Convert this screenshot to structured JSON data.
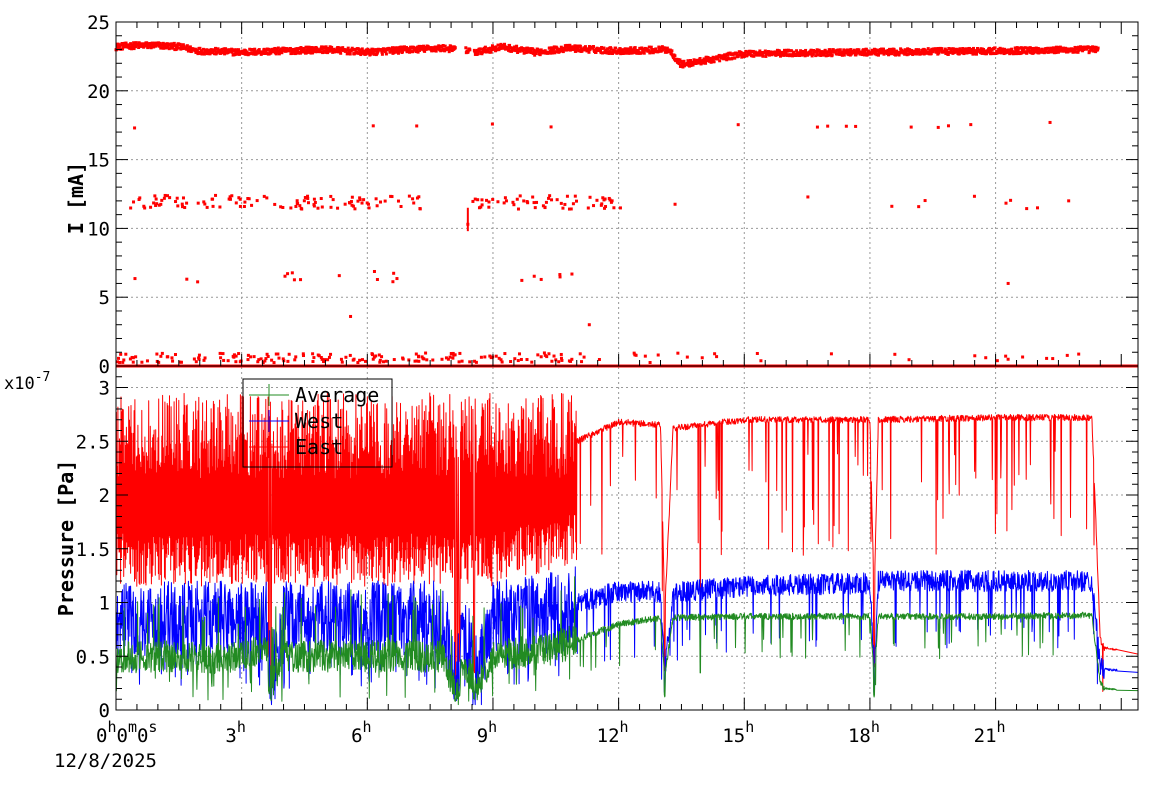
{
  "chart_data": [
    {
      "type": "scatter",
      "ylabel": "I [mA]",
      "ylim": [
        0,
        25
      ],
      "yticks": [
        0,
        5,
        10,
        15,
        20,
        25
      ],
      "grid": true,
      "series": [
        {
          "color": "#ff0000",
          "marker": "square",
          "main_band": {
            "x_hours": [
              0,
              0.5,
              1,
              1.5,
              2,
              3,
              4,
              5,
              6,
              7,
              7.8,
              8.2,
              8.6,
              9.2,
              10,
              10.8,
              12,
              13.2,
              13.5,
              15,
              18,
              21,
              23.4
            ],
            "y": [
              23.2,
              23.3,
              23.3,
              23.2,
              22.9,
              22.8,
              22.9,
              23.0,
              22.8,
              23.0,
              23.1,
              23.0,
              22.8,
              23.2,
              22.8,
              23.1,
              22.9,
              23.0,
              21.9,
              22.7,
              22.8,
              22.9,
              23.0
            ]
          },
          "base_line_y": 0.0,
          "scattered_levels_mA": [
            11.9,
            17.5,
            6.5,
            0.6
          ],
          "extra_points": [
            [
              11.3,
              3.0
            ],
            [
              5.6,
              3.6
            ],
            [
              8.4,
              10.3
            ],
            [
              21.3,
              6.0
            ],
            [
              22.3,
              17.7
            ]
          ]
        }
      ]
    },
    {
      "type": "line",
      "ylabel": "Pressure [Pa]",
      "y_exponent_base": "x10",
      "y_exponent": "-7",
      "ylim": [
        0,
        3.2
      ],
      "yticks": [
        "0",
        "0.5",
        "1",
        "1.5",
        "2",
        "2.5",
        "3"
      ],
      "ytick_values": [
        0,
        0.5,
        1,
        1.5,
        2,
        2.5,
        3
      ],
      "grid": true,
      "legend_position": "top-left",
      "series": [
        {
          "name": "Average",
          "color": "#228b22",
          "x_hours": [
            0,
            1,
            2,
            3,
            3.6,
            3.7,
            4,
            6,
            7.8,
            8.1,
            8.3,
            8.6,
            9,
            10,
            11,
            12,
            13.0,
            13.1,
            13.3,
            15,
            18,
            18.1,
            18.2,
            21,
            23.3,
            23.5,
            23.6,
            24.4
          ],
          "y": [
            0.48,
            0.5,
            0.48,
            0.5,
            0.6,
            0.22,
            0.5,
            0.5,
            0.5,
            0.2,
            0.45,
            0.22,
            0.5,
            0.55,
            0.65,
            0.8,
            0.86,
            0.3,
            0.86,
            0.87,
            0.87,
            0.3,
            0.87,
            0.87,
            0.88,
            0.25,
            0.2,
            0.18
          ]
        },
        {
          "name": "West",
          "color": "#0000ff",
          "x_hours": [
            0,
            1,
            2,
            3,
            3.6,
            3.7,
            4,
            6,
            7.8,
            8.1,
            8.3,
            8.6,
            9,
            10,
            11,
            12,
            13.0,
            13.1,
            13.3,
            15,
            18,
            18.1,
            18.2,
            21,
            23.3,
            23.5,
            23.6,
            24.4
          ],
          "y": [
            0.85,
            0.85,
            0.85,
            0.85,
            0.85,
            0.25,
            0.85,
            0.85,
            0.85,
            0.35,
            0.8,
            0.35,
            0.85,
            0.9,
            1.0,
            1.1,
            1.1,
            0.35,
            1.1,
            1.15,
            1.18,
            0.35,
            1.2,
            1.2,
            1.2,
            0.4,
            0.38,
            0.35
          ]
        },
        {
          "name": "East",
          "color": "#ff0000",
          "x_hours": [
            0,
            1,
            2,
            3,
            3.6,
            3.7,
            4,
            6,
            7.8,
            8.1,
            8.3,
            8.6,
            9,
            10,
            11,
            12,
            13.0,
            13.1,
            13.3,
            15,
            18,
            18.1,
            18.2,
            21,
            23.3,
            23.5,
            23.6,
            24.4
          ],
          "y": [
            2.0,
            2.0,
            2.0,
            2.0,
            2.0,
            0.7,
            2.0,
            2.0,
            2.0,
            0.5,
            1.9,
            0.7,
            2.0,
            2.2,
            2.5,
            2.68,
            2.65,
            0.9,
            2.62,
            2.7,
            2.7,
            1.0,
            2.7,
            2.72,
            2.72,
            0.65,
            0.58,
            0.52
          ]
        }
      ]
    }
  ],
  "x_axis": {
    "start_label_time": "0h0m0s",
    "start_label_date": "12/8/2025",
    "range_hours": [
      0,
      24.4
    ],
    "tick_hours": [
      3,
      6,
      9,
      12,
      15,
      18,
      21
    ]
  }
}
